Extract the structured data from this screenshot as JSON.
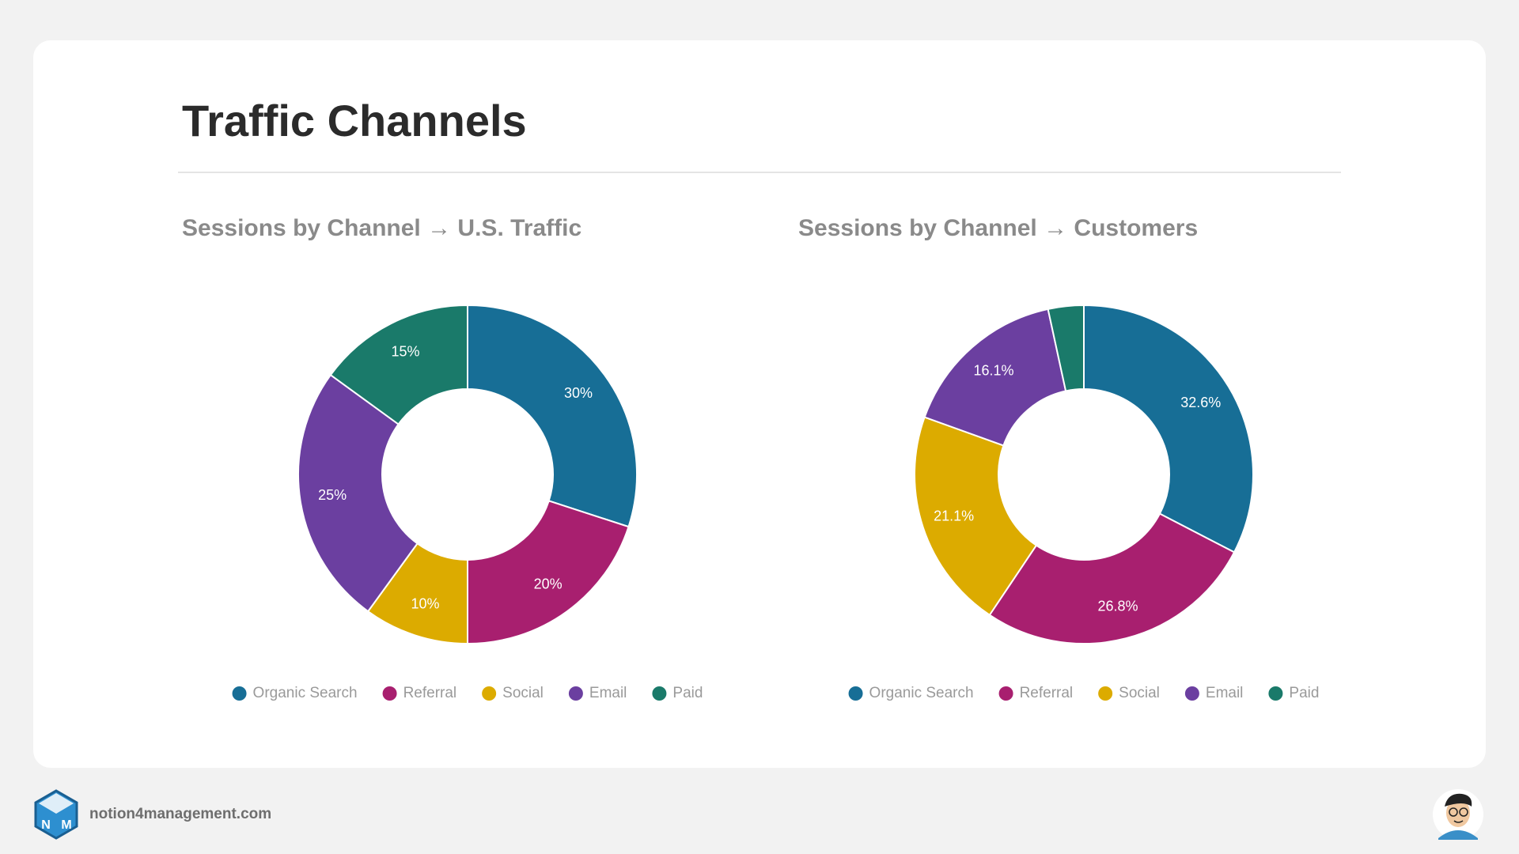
{
  "header": {
    "title": "Traffic Channels"
  },
  "chart_data": [
    {
      "type": "donut",
      "title": "Sessions by Channel → U.S. Traffic",
      "categories": [
        "Organic Search",
        "Referral",
        "Social",
        "Email",
        "Paid"
      ],
      "values": [
        30,
        20,
        10,
        25,
        15
      ],
      "value_labels": [
        "30%",
        "20%",
        "10%",
        "25%",
        "15%"
      ],
      "colors": [
        "#176e96",
        "#a81f6f",
        "#dcab00",
        "#6b3fa0",
        "#1a7a6a"
      ]
    },
    {
      "type": "donut",
      "title": "Sessions by Channel → Customers",
      "categories": [
        "Organic Search",
        "Referral",
        "Social",
        "Email",
        "Paid"
      ],
      "values": [
        32.6,
        26.8,
        21.1,
        16.1,
        3.4
      ],
      "value_labels": [
        "32.6%",
        "26.8%",
        "21.1%",
        "16.1%",
        null
      ],
      "colors": [
        "#176e96",
        "#a81f6f",
        "#dcab00",
        "#6b3fa0",
        "#1a7a6a"
      ]
    }
  ],
  "footer": {
    "site": "notion4management.com"
  }
}
